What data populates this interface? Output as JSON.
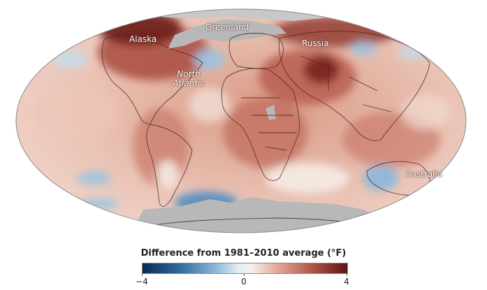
{
  "map": {
    "projection": "mollweide",
    "colors": {
      "warm_dark": "#6e1c18",
      "warm_mid": "#b5584a",
      "warm_light": "#e7b3a2",
      "neutral": "#f6ece6",
      "cool": "#9cc3e0",
      "cool_dark": "#4f87bb",
      "no_data": "#b8b8b8",
      "borders": "#4a2a22"
    },
    "labels": {
      "alaska": "Alaska",
      "greenland": "Greenland",
      "russia": "Russia",
      "north_atlantic_line1": "North",
      "north_atlantic_line2": "Atlantic",
      "australia": "Australia"
    }
  },
  "legend": {
    "title": "Difference from 1981–2010 average (°F)",
    "min_label": "−4",
    "mid_label": "0",
    "max_label": "4",
    "min": -4,
    "max": 4
  }
}
